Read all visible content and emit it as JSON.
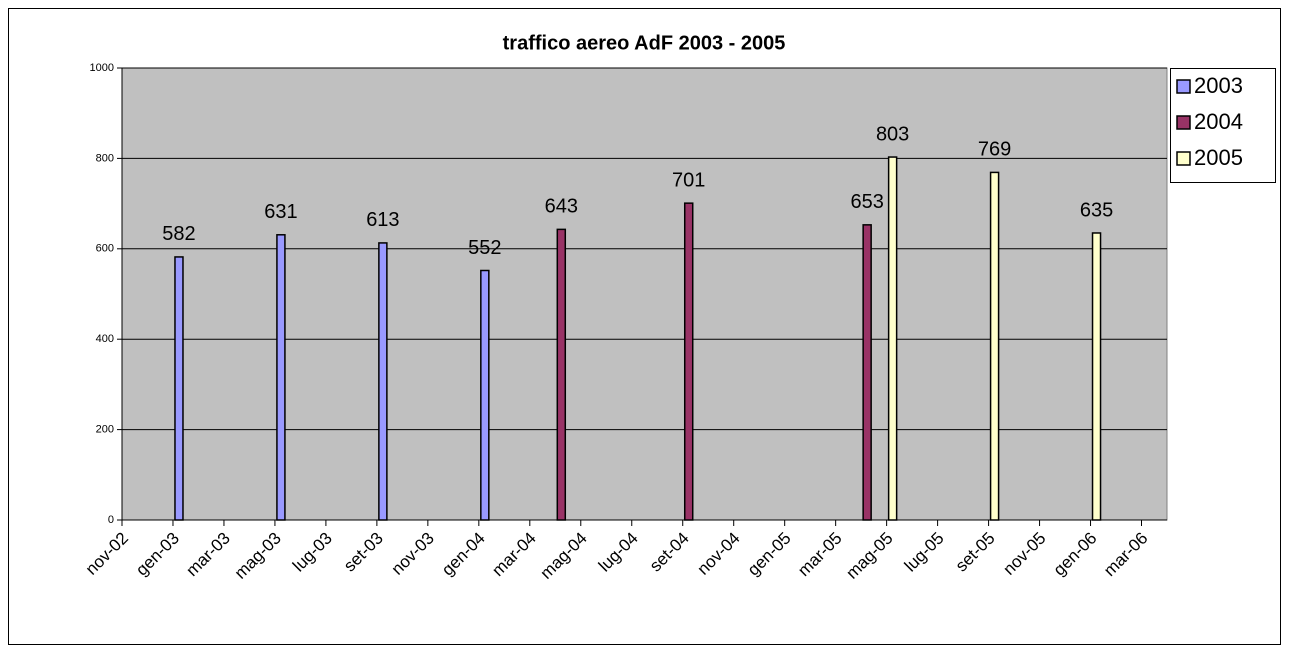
{
  "chart_data": {
    "type": "bar",
    "title": "traffico aereo AdF 2003 - 2005",
    "series": [
      {
        "name": "2003",
        "color": "#9999ff",
        "x": [
          "2003-01",
          "2003-05",
          "2003-09",
          "2004-01"
        ],
        "values": [
          582,
          631,
          613,
          552
        ]
      },
      {
        "name": "2004",
        "color": "#993366",
        "x": [
          "2004-04",
          "2004-09",
          "2005-04"
        ],
        "values": [
          643,
          701,
          653
        ]
      },
      {
        "name": "2005",
        "color": "#ffffcc",
        "x": [
          "2005-05",
          "2005-09",
          "2006-01"
        ],
        "values": [
          803,
          769,
          635
        ]
      }
    ],
    "xlim": [
      "2002-11",
      "2006-04"
    ],
    "xticks": [
      {
        "value": "2002-11",
        "label": "nov-02"
      },
      {
        "value": "2003-01",
        "label": "gen-03"
      },
      {
        "value": "2003-03",
        "label": "mar-03"
      },
      {
        "value": "2003-05",
        "label": "mag-03"
      },
      {
        "value": "2003-07",
        "label": "lug-03"
      },
      {
        "value": "2003-09",
        "label": "set-03"
      },
      {
        "value": "2003-11",
        "label": "nov-03"
      },
      {
        "value": "2004-01",
        "label": "gen-04"
      },
      {
        "value": "2004-03",
        "label": "mar-04"
      },
      {
        "value": "2004-05",
        "label": "mag-04"
      },
      {
        "value": "2004-07",
        "label": "lug-04"
      },
      {
        "value": "2004-09",
        "label": "set-04"
      },
      {
        "value": "2004-11",
        "label": "nov-04"
      },
      {
        "value": "2005-01",
        "label": "gen-05"
      },
      {
        "value": "2005-03",
        "label": "mar-05"
      },
      {
        "value": "2005-05",
        "label": "mag-05"
      },
      {
        "value": "2005-07",
        "label": "lug-05"
      },
      {
        "value": "2005-09",
        "label": "set-05"
      },
      {
        "value": "2005-11",
        "label": "nov-05"
      },
      {
        "value": "2006-01",
        "label": "gen-06"
      },
      {
        "value": "2006-03",
        "label": "mar-06"
      }
    ],
    "ylim": [
      0,
      1000
    ],
    "yticks": [
      0,
      200,
      400,
      600,
      800,
      1000
    ],
    "grid": true,
    "legend": "right"
  }
}
